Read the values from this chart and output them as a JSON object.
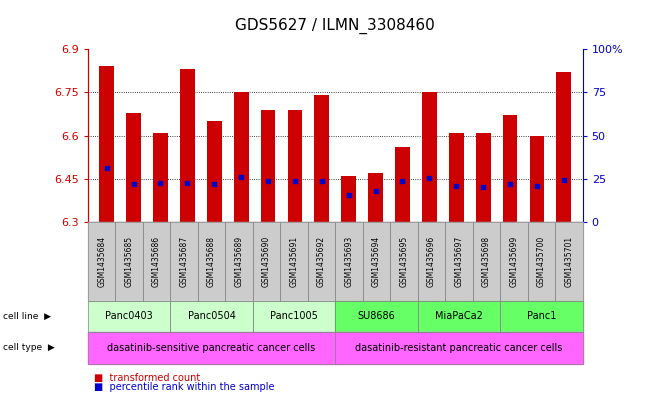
{
  "title": "GDS5627 / ILMN_3308460",
  "samples": [
    "GSM1435684",
    "GSM1435685",
    "GSM1435686",
    "GSM1435687",
    "GSM1435688",
    "GSM1435689",
    "GSM1435690",
    "GSM1435691",
    "GSM1435692",
    "GSM1435693",
    "GSM1435694",
    "GSM1435695",
    "GSM1435696",
    "GSM1435697",
    "GSM1435698",
    "GSM1435699",
    "GSM1435700",
    "GSM1435701"
  ],
  "transformed_count": [
    6.84,
    6.68,
    6.61,
    6.83,
    6.65,
    6.75,
    6.69,
    6.69,
    6.74,
    6.46,
    6.47,
    6.56,
    6.75,
    6.61,
    6.61,
    6.67,
    6.6,
    6.82
  ],
  "percentile_rank": [
    6.487,
    6.432,
    6.434,
    6.434,
    6.433,
    6.456,
    6.442,
    6.443,
    6.441,
    6.393,
    6.408,
    6.443,
    6.453,
    6.424,
    6.423,
    6.432,
    6.424,
    6.447
  ],
  "ymin": 6.3,
  "ymax": 6.9,
  "yticks": [
    6.3,
    6.45,
    6.6,
    6.75,
    6.9
  ],
  "ytick_labels": [
    "6.3",
    "6.45",
    "6.6",
    "6.75",
    "6.9"
  ],
  "right_yticks": [
    0,
    25,
    50,
    75,
    100
  ],
  "right_ytick_labels": [
    "0",
    "25",
    "50",
    "75",
    "100%"
  ],
  "cell_lines": [
    {
      "label": "Panc0403",
      "start": 0,
      "end": 3,
      "sensitive": true
    },
    {
      "label": "Panc0504",
      "start": 3,
      "end": 6,
      "sensitive": true
    },
    {
      "label": "Panc1005",
      "start": 6,
      "end": 9,
      "sensitive": true
    },
    {
      "label": "SU8686",
      "start": 9,
      "end": 12,
      "sensitive": false
    },
    {
      "label": "MiaPaCa2",
      "start": 12,
      "end": 15,
      "sensitive": false
    },
    {
      "label": "Panc1",
      "start": 15,
      "end": 18,
      "sensitive": false
    }
  ],
  "cell_line_color_sensitive": "#CCFFCC",
  "cell_line_color_resistant": "#66FF66",
  "cell_type_color": "#FF66FF",
  "cell_type_groups": [
    {
      "label": "dasatinib-sensitive pancreatic cancer cells",
      "start": 0,
      "end": 9
    },
    {
      "label": "dasatinib-resistant pancreatic cancer cells",
      "start": 9,
      "end": 18
    }
  ],
  "bar_color": "#CC0000",
  "percentile_color": "#0000CC",
  "left_axis_color": "#CC0000",
  "right_axis_color": "#0000CC",
  "sample_bg_color": "#CCCCCC",
  "title_fontsize": 11
}
